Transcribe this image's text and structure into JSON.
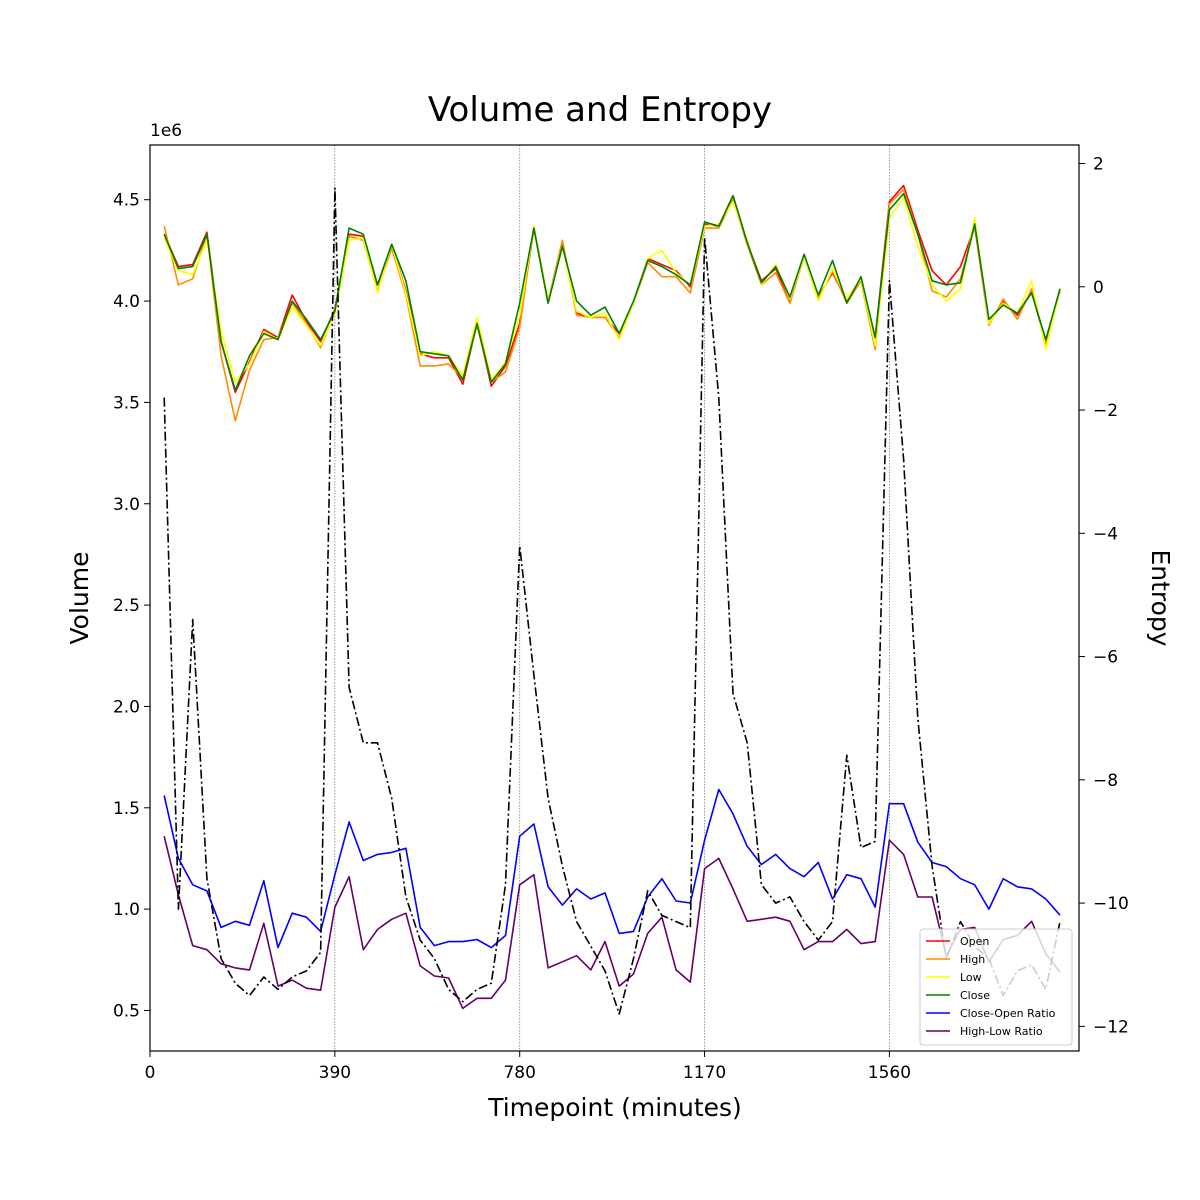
{
  "chart_data": {
    "type": "line",
    "title": "Volume and Entropy",
    "xlabel": "Timepoint (minutes)",
    "ylabel_left": "Volume",
    "ylabel_right": "Entropy",
    "left_multiplier": "1e6",
    "xlim": [
      0,
      1960
    ],
    "ylim_left": [
      0.3,
      4.77
    ],
    "ylim_right": [
      -12.4,
      2.3
    ],
    "x_ticks": [
      "0",
      "390",
      "780",
      "1170",
      "1560"
    ],
    "y_left_ticks": [
      "0.5",
      "1.0",
      "1.5",
      "2.0",
      "2.5",
      "3.0",
      "3.5",
      "4.0",
      "4.5"
    ],
    "y_right_ticks": [
      "−12",
      "−10",
      "−8",
      "−6",
      "−4",
      "−2",
      "0",
      "2"
    ],
    "vlines": [
      390,
      780,
      1170,
      1560
    ],
    "legend_position": "bottom-right",
    "x": [
      30,
      60,
      90,
      120,
      150,
      180,
      210,
      240,
      270,
      300,
      330,
      360,
      390,
      420,
      450,
      480,
      510,
      540,
      570,
      600,
      630,
      660,
      690,
      720,
      750,
      780,
      810,
      840,
      870,
      900,
      930,
      960,
      990,
      1020,
      1050,
      1080,
      1110,
      1140,
      1170,
      1200,
      1230,
      1260,
      1290,
      1320,
      1350,
      1380,
      1410,
      1440,
      1470,
      1500,
      1530,
      1560,
      1590,
      1620,
      1650,
      1680,
      1710,
      1740,
      1770,
      1800,
      1830,
      1860,
      1890,
      1920,
      1950
    ],
    "series": [
      {
        "name": "Open",
        "axis": "left",
        "color": "#ff0000",
        "values": [
          4.33,
          4.17,
          4.18,
          4.34,
          3.8,
          3.55,
          3.7,
          3.86,
          3.82,
          4.03,
          3.9,
          3.8,
          3.96,
          4.33,
          4.32,
          4.08,
          4.28,
          4.05,
          3.74,
          3.72,
          3.72,
          3.59,
          3.89,
          3.58,
          3.68,
          3.89,
          4.36,
          3.99,
          4.28,
          3.94,
          3.92,
          3.92,
          3.84,
          3.99,
          4.21,
          4.18,
          4.15,
          4.07,
          4.38,
          4.37,
          4.52,
          4.29,
          4.1,
          4.16,
          4.0,
          4.23,
          4.02,
          4.14,
          4.0,
          4.11,
          3.82,
          4.49,
          4.57,
          4.35,
          4.15,
          4.08,
          4.17,
          4.37,
          3.89,
          4.0,
          3.93,
          4.05,
          3.79,
          4.06,
          null
        ]
      },
      {
        "name": "High",
        "axis": "left",
        "color": "#ff8c00",
        "values": [
          4.37,
          4.08,
          4.11,
          4.33,
          3.73,
          3.41,
          3.66,
          3.81,
          3.82,
          3.99,
          3.89,
          3.77,
          3.95,
          4.32,
          4.3,
          4.05,
          4.26,
          4.03,
          3.68,
          3.68,
          3.69,
          3.62,
          3.88,
          3.6,
          3.65,
          3.87,
          4.37,
          4.0,
          4.3,
          3.93,
          3.92,
          3.92,
          3.82,
          3.99,
          4.19,
          4.12,
          4.12,
          4.04,
          4.36,
          4.36,
          4.5,
          4.28,
          4.08,
          4.14,
          3.99,
          4.22,
          4.01,
          4.15,
          3.99,
          4.1,
          3.76,
          4.48,
          4.55,
          4.33,
          4.05,
          4.02,
          4.11,
          4.37,
          3.88,
          4.01,
          3.91,
          4.06,
          3.79,
          4.05,
          null
        ]
      },
      {
        "name": "Low",
        "axis": "left",
        "color": "#ffff00",
        "values": [
          4.31,
          4.15,
          4.13,
          4.3,
          3.85,
          3.6,
          3.69,
          3.85,
          3.81,
          3.97,
          3.88,
          3.78,
          3.94,
          4.3,
          4.31,
          4.04,
          4.28,
          4.04,
          3.73,
          3.75,
          3.73,
          3.63,
          3.92,
          3.61,
          3.7,
          3.93,
          4.37,
          4.0,
          4.27,
          3.95,
          3.92,
          3.94,
          3.81,
          3.99,
          4.21,
          4.25,
          4.14,
          4.08,
          4.37,
          4.38,
          4.49,
          4.3,
          4.08,
          4.18,
          4.01,
          4.22,
          4.0,
          4.16,
          4.01,
          4.11,
          3.78,
          4.41,
          4.51,
          4.27,
          4.08,
          4.0,
          4.06,
          4.41,
          3.89,
          3.99,
          3.94,
          4.1,
          3.76,
          4.06,
          null
        ]
      },
      {
        "name": "Close",
        "axis": "left",
        "color": "#008000",
        "values": [
          4.33,
          4.16,
          4.17,
          4.33,
          3.8,
          3.56,
          3.73,
          3.84,
          3.81,
          4.0,
          3.91,
          3.81,
          3.95,
          4.36,
          4.33,
          4.08,
          4.28,
          4.1,
          3.75,
          3.74,
          3.73,
          3.61,
          3.89,
          3.6,
          3.69,
          3.99,
          4.36,
          3.99,
          4.27,
          4.0,
          3.93,
          3.97,
          3.84,
          4.0,
          4.2,
          4.17,
          4.13,
          4.08,
          4.39,
          4.37,
          4.52,
          4.29,
          4.09,
          4.17,
          4.02,
          4.23,
          4.03,
          4.2,
          3.99,
          4.12,
          3.82,
          4.45,
          4.53,
          4.33,
          4.1,
          4.08,
          4.09,
          4.38,
          3.91,
          3.98,
          3.94,
          4.04,
          3.81,
          4.06,
          null
        ]
      },
      {
        "name": "Close-Open Ratio",
        "axis": "left",
        "color": "#0000ff",
        "values": [
          1.56,
          1.25,
          1.12,
          1.09,
          0.91,
          0.94,
          0.92,
          1.14,
          0.81,
          0.98,
          0.96,
          0.89,
          1.17,
          1.43,
          1.24,
          1.27,
          1.28,
          1.3,
          0.91,
          0.82,
          0.84,
          0.84,
          0.85,
          0.81,
          0.87,
          1.36,
          1.42,
          1.11,
          1.02,
          1.1,
          1.05,
          1.08,
          0.88,
          0.89,
          1.06,
          1.15,
          1.04,
          1.03,
          1.34,
          1.59,
          1.47,
          1.31,
          1.22,
          1.27,
          1.2,
          1.16,
          1.23,
          1.05,
          1.17,
          1.15,
          1.01,
          1.52,
          1.52,
          1.33,
          1.23,
          1.21,
          1.15,
          1.12,
          1.0,
          1.15,
          1.11,
          1.1,
          1.05,
          0.97,
          null
        ]
      },
      {
        "name": "High-Low Ratio",
        "axis": "left",
        "color": "#660066",
        "values": [
          1.36,
          1.07,
          0.82,
          0.8,
          0.73,
          0.71,
          0.7,
          0.93,
          0.62,
          0.65,
          0.61,
          0.6,
          1.01,
          1.16,
          0.8,
          0.9,
          0.95,
          0.98,
          0.72,
          0.67,
          0.66,
          0.51,
          0.56,
          0.56,
          0.65,
          1.12,
          1.17,
          0.71,
          0.74,
          0.77,
          0.7,
          0.84,
          0.62,
          0.68,
          0.88,
          0.96,
          0.7,
          0.64,
          1.2,
          1.25,
          1.1,
          0.94,
          0.95,
          0.96,
          0.94,
          0.8,
          0.84,
          0.84,
          0.9,
          0.83,
          0.84,
          1.34,
          1.27,
          1.06,
          1.06,
          0.77,
          0.9,
          0.91,
          0.74,
          0.85,
          0.87,
          0.94,
          0.78,
          0.69,
          null
        ]
      },
      {
        "name": "",
        "axis": "right",
        "color": "#000000",
        "dash": "dashdot",
        "values": [
          -1.8,
          -10.1,
          -5.4,
          -9.6,
          -10.9,
          -11.3,
          -11.5,
          -11.2,
          -11.4,
          -11.2,
          -11.1,
          -10.8,
          1.6,
          -6.5,
          -7.4,
          -7.4,
          -8.3,
          -9.9,
          -10.6,
          -10.9,
          -11.4,
          -11.6,
          -11.4,
          -11.3,
          -9.7,
          -4.2,
          -6.3,
          -8.3,
          -9.4,
          -10.3,
          -10.7,
          -11.1,
          -11.8,
          -10.9,
          -9.8,
          -10.2,
          -10.3,
          -10.4,
          0.8,
          -1.8,
          -6.6,
          -7.4,
          -9.7,
          -10.0,
          -9.9,
          -10.3,
          -10.6,
          -10.3,
          -7.6,
          -9.1,
          -9.0,
          0.1,
          -2.8,
          -7.0,
          -9.4,
          -10.9,
          -10.3,
          -10.7,
          -10.9,
          -11.5,
          -11.1,
          -11.0,
          -11.4,
          -10.3,
          null
        ]
      }
    ],
    "legend": [
      "Open",
      "High",
      "Low",
      "Close",
      "Close-Open Ratio",
      "High-Low Ratio"
    ]
  }
}
